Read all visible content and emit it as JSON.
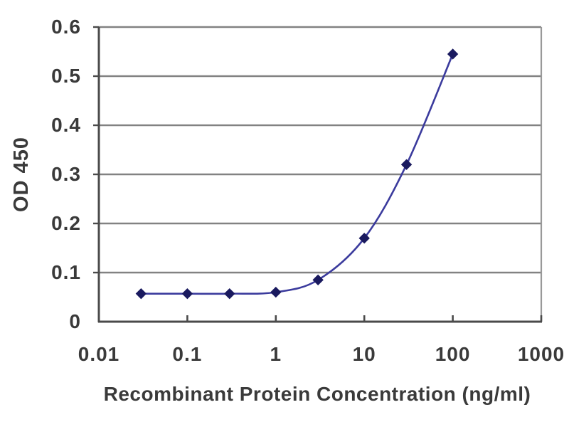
{
  "chart_data": {
    "type": "line",
    "title": "",
    "xlabel": "Recombinant Protein Concentration (ng/ml)",
    "ylabel": "OD 450",
    "x_scale": "log",
    "xlim": [
      0.01,
      1000
    ],
    "ylim": [
      0,
      0.6
    ],
    "x_tick_labels": [
      "0.01",
      "0.1",
      "1",
      "10",
      "100",
      "1000"
    ],
    "x_tick_values": [
      0.01,
      0.1,
      1,
      10,
      100,
      1000
    ],
    "y_tick_labels": [
      "0",
      "0.1",
      "0.2",
      "0.3",
      "0.4",
      "0.5",
      "0.6"
    ],
    "y_tick_values": [
      0,
      0.1,
      0.2,
      0.3,
      0.4,
      0.5,
      0.6
    ],
    "grid": "horizontal",
    "legend": "none",
    "series": [
      {
        "name": "OD 450",
        "x": [
          0.03,
          0.1,
          0.3,
          1,
          3,
          10,
          30,
          100
        ],
        "y": [
          0.057,
          0.057,
          0.057,
          0.06,
          0.085,
          0.17,
          0.32,
          0.545
        ],
        "line_style": "smooth",
        "marker": "diamond"
      }
    ],
    "colors": {
      "line": "#3b3b9d",
      "marker": "#1a1a5f",
      "gridline": "#828282",
      "axis": "#4a4a4a",
      "frame": "#999999",
      "text": "#3a3a3a",
      "background": "#ffffff"
    }
  }
}
